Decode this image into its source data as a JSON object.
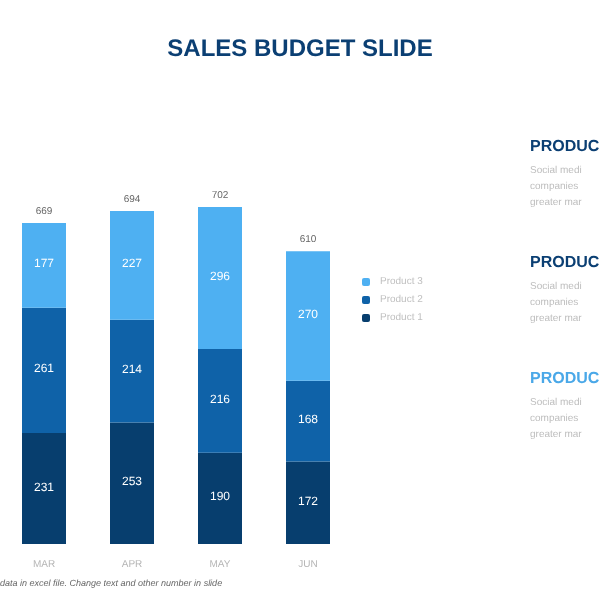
{
  "chart_data": {
    "type": "bar",
    "title": "SALES BUDGET SLIDE",
    "stacked": true,
    "categories": [
      "MAR",
      "APR",
      "MAY",
      "JUN"
    ],
    "series": [
      {
        "name": "Product 1",
        "color": "#073e6e",
        "values": [
          231,
          253,
          190,
          172
        ]
      },
      {
        "name": "Product 2",
        "color": "#0f62a8",
        "values": [
          261,
          214,
          216,
          168
        ]
      },
      {
        "name": "Product 3",
        "color": "#4eb0f2",
        "values": [
          177,
          227,
          296,
          270
        ]
      }
    ],
    "data_labels": true,
    "totals": [
      "669",
      "694",
      "702",
      "610"
    ],
    "legend": "right",
    "annotations": [
      "PRODUC",
      "Social medi",
      "companies",
      "greater mar",
      "PRODUC",
      "Social medi",
      "companies",
      "greater mar",
      "PRODUC",
      "Social medi",
      "companies",
      "greater mar",
      "data in excel file. Change text and other number in slide"
    ]
  }
}
